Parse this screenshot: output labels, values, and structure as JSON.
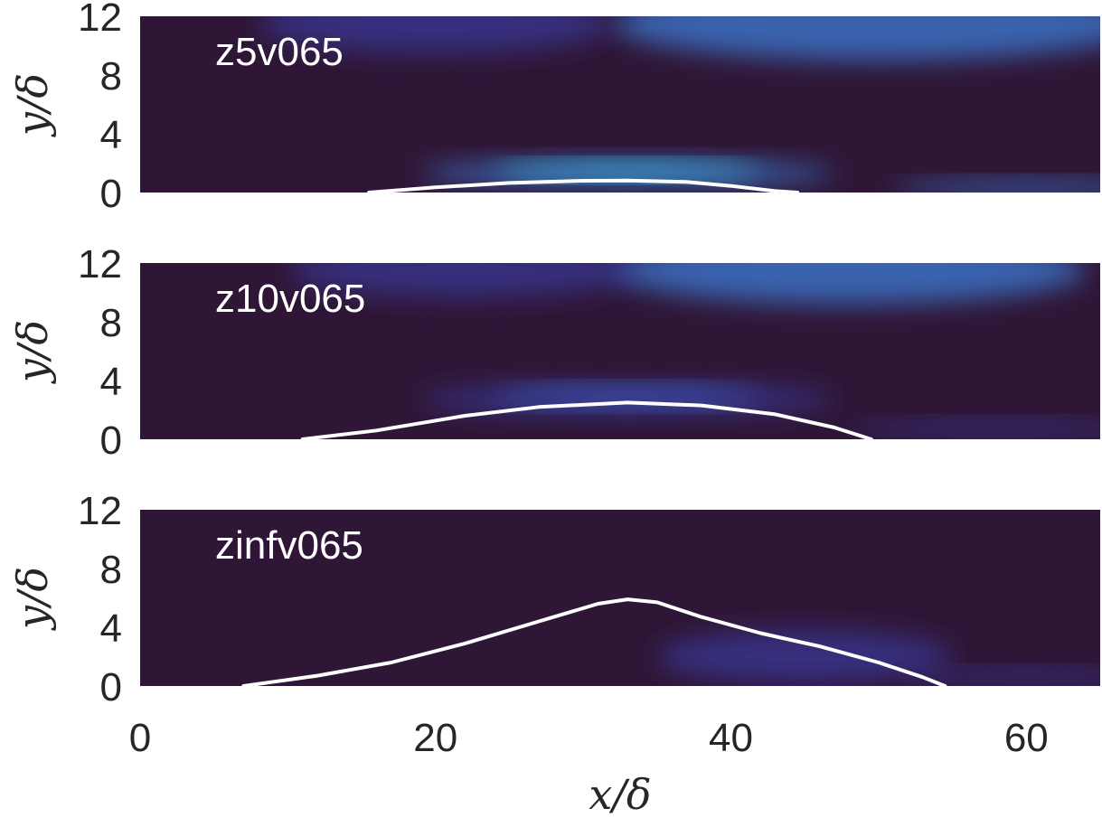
{
  "chart_data": {
    "type": "heatmap",
    "x_label": "x/δ",
    "y_label": "y/δ",
    "xlim": [
      0,
      65
    ],
    "ylim": [
      0,
      12
    ],
    "x_ticks": [
      "0",
      "20",
      "40",
      "60"
    ],
    "x_tick_values": [
      0,
      20,
      40,
      60
    ],
    "y_ticks": [
      "0",
      "4",
      "8",
      "12"
    ],
    "y_tick_values": [
      0,
      4,
      8,
      12
    ],
    "colors": {
      "background": "#2f1636",
      "mid": "#3a3ea5",
      "high": "#3f8cf0",
      "peak": "#36d1c8",
      "contour": "#ffffff"
    },
    "panels": [
      {
        "label": "z5v065",
        "contour": [
          [
            15.5,
            0
          ],
          [
            20,
            0.35
          ],
          [
            25,
            0.65
          ],
          [
            30,
            0.8
          ],
          [
            33,
            0.82
          ],
          [
            37,
            0.72
          ],
          [
            40,
            0.45
          ],
          [
            43,
            0.1
          ],
          [
            44.5,
            0
          ]
        ],
        "features": [
          {
            "x": 33,
            "y": 1.5,
            "rx": 9,
            "ry": 0.5,
            "level": "peak"
          },
          {
            "x": 33,
            "y": 1.3,
            "rx": 14,
            "ry": 0.9,
            "level": "high"
          },
          {
            "x": 60,
            "y": 0.3,
            "rx": 9,
            "ry": 0.5,
            "level": "high"
          },
          {
            "x": 50,
            "y": 11.5,
            "rx": 18,
            "ry": 2.5,
            "level": "high"
          },
          {
            "x": 20,
            "y": 11.5,
            "rx": 12,
            "ry": 2.0,
            "level": "mid"
          }
        ]
      },
      {
        "label": "z10v065",
        "contour": [
          [
            11,
            0
          ],
          [
            16,
            0.6
          ],
          [
            22,
            1.6
          ],
          [
            27,
            2.2
          ],
          [
            33,
            2.5
          ],
          [
            38,
            2.3
          ],
          [
            43,
            1.7
          ],
          [
            47,
            0.8
          ],
          [
            49.5,
            0
          ]
        ],
        "features": [
          {
            "x": 33,
            "y": 2.9,
            "rx": 9,
            "ry": 0.6,
            "level": "high"
          },
          {
            "x": 33,
            "y": 2.7,
            "rx": 14,
            "ry": 1.1,
            "level": "mid"
          },
          {
            "x": 58,
            "y": 0.7,
            "rx": 10,
            "ry": 0.5,
            "level": "mid"
          },
          {
            "x": 48,
            "y": 11.5,
            "rx": 16,
            "ry": 2.3,
            "level": "high"
          },
          {
            "x": 22,
            "y": 11.5,
            "rx": 12,
            "ry": 1.8,
            "level": "mid"
          }
        ]
      },
      {
        "label": "zinfv065",
        "contour": [
          [
            7,
            0
          ],
          [
            12,
            0.7
          ],
          [
            17,
            1.6
          ],
          [
            22,
            2.9
          ],
          [
            27,
            4.4
          ],
          [
            31,
            5.6
          ],
          [
            33,
            5.9
          ],
          [
            35,
            5.7
          ],
          [
            38,
            4.7
          ],
          [
            42,
            3.6
          ],
          [
            46,
            2.7
          ],
          [
            50,
            1.6
          ],
          [
            53,
            0.6
          ],
          [
            54.5,
            0
          ]
        ],
        "features": [
          {
            "x": 45,
            "y": 2.0,
            "rx": 10,
            "ry": 1.8,
            "level": "mid"
          },
          {
            "x": 60,
            "y": 0.6,
            "rx": 8,
            "ry": 0.5,
            "level": "mid"
          }
        ]
      }
    ]
  }
}
